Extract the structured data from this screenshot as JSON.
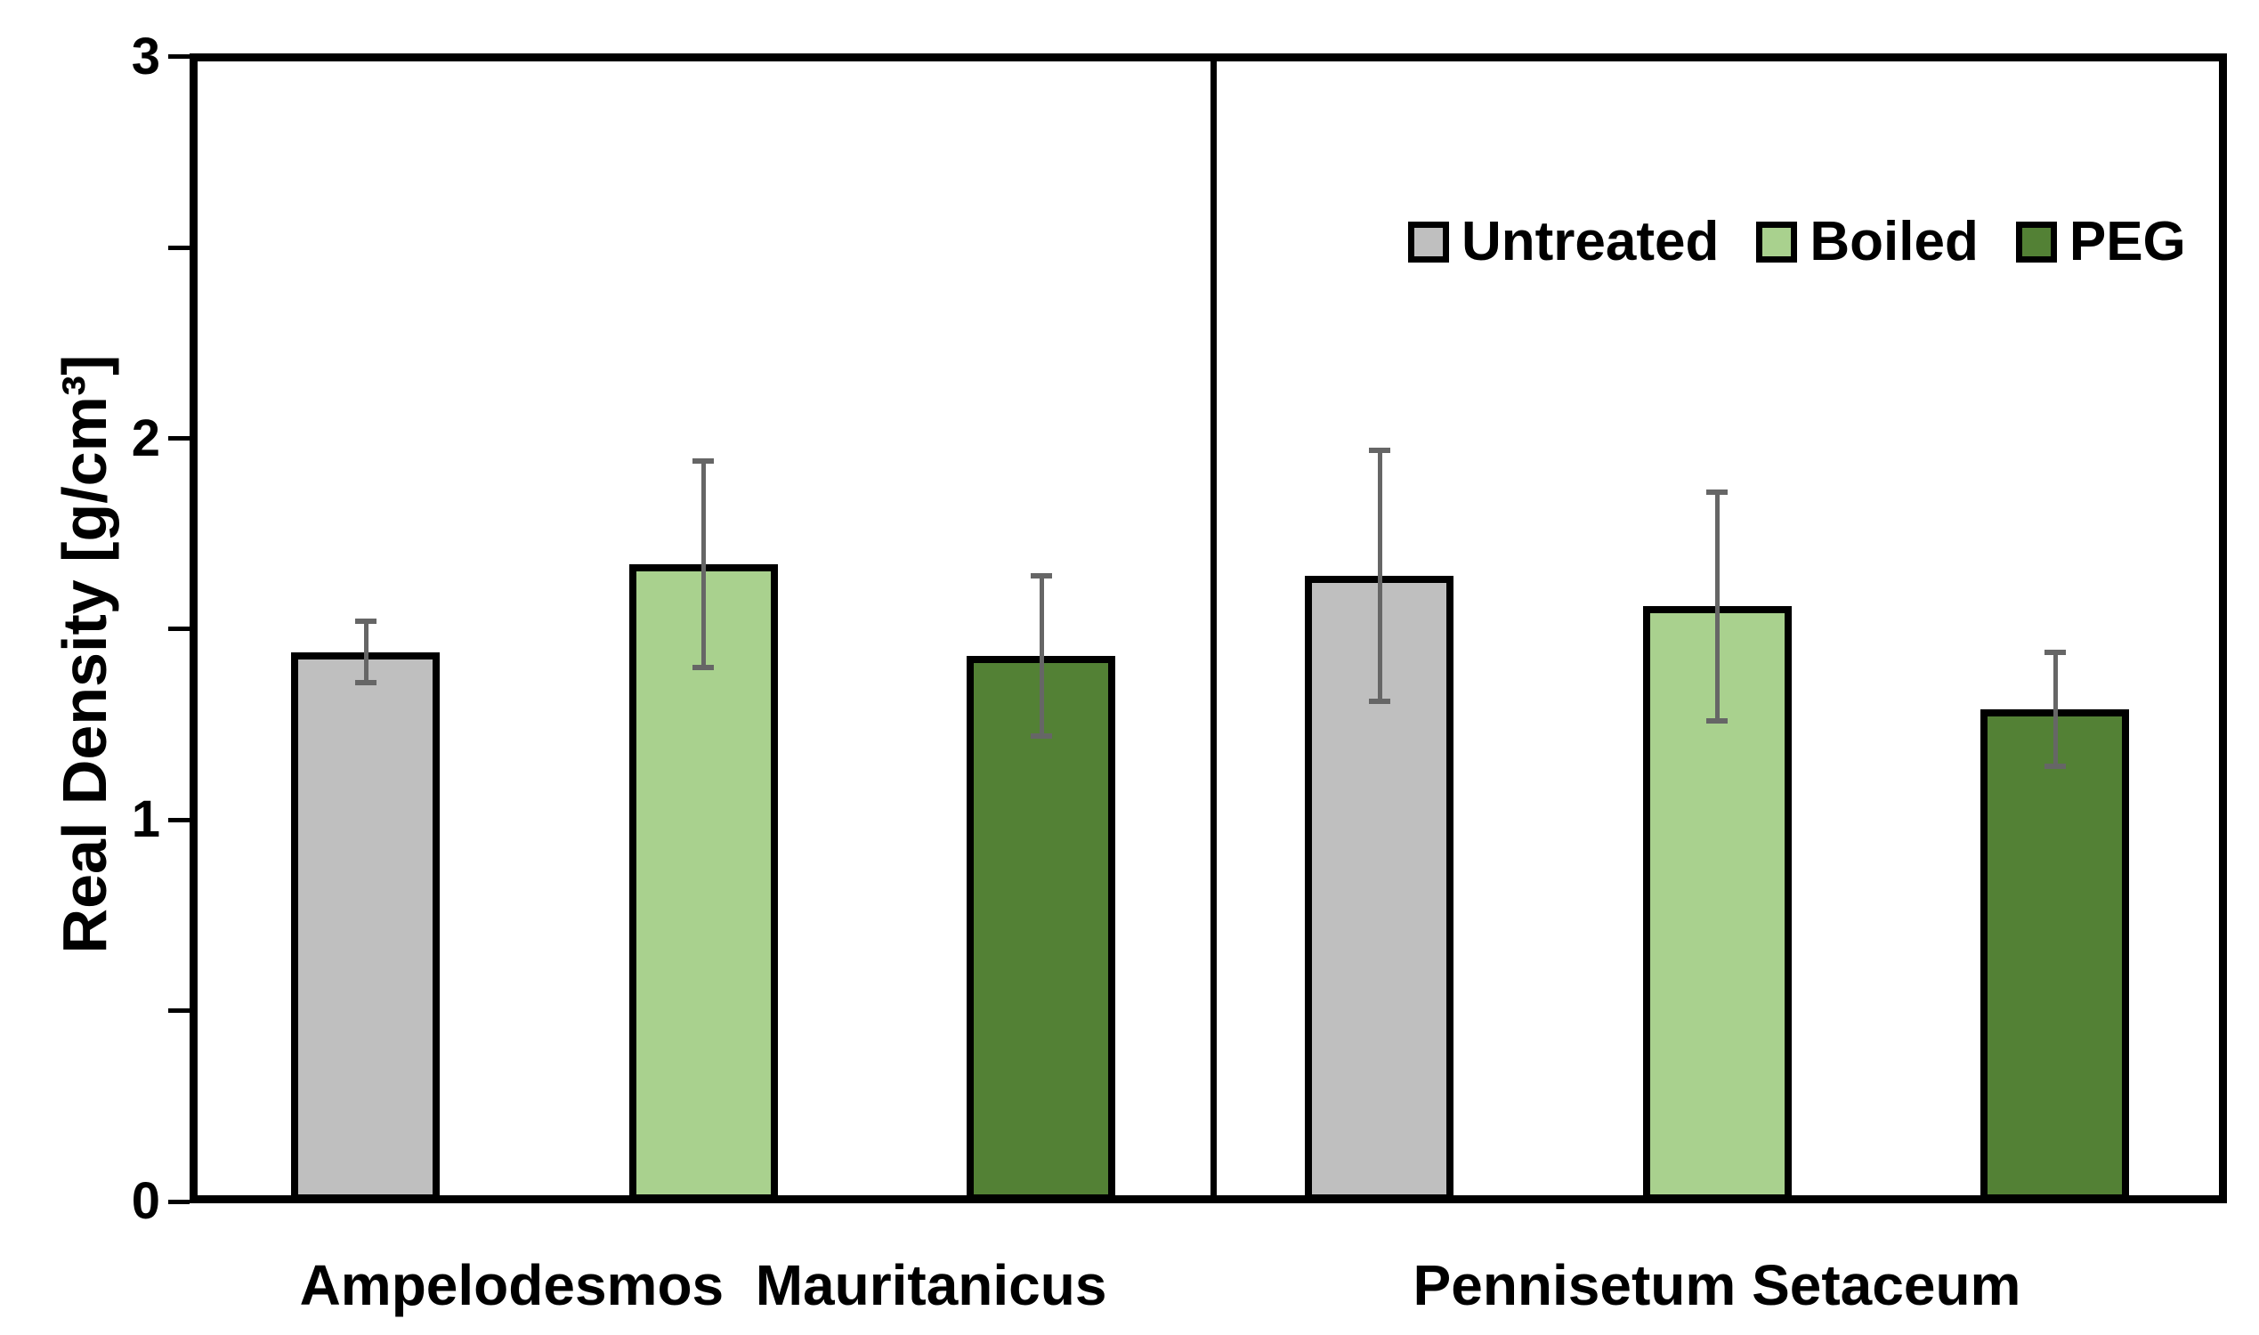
{
  "figure": {
    "background_color": "#FFFFFF",
    "text_color": "#000000"
  },
  "chart_data": {
    "type": "bar",
    "title": "",
    "xlabel": "",
    "ylabel": "Real Density [g/cm³]",
    "ylim": [
      0,
      3
    ],
    "y_major_tick_step": 1,
    "y_minor_tick_step": 0.5,
    "all_tick_values": [
      0,
      0.5,
      1,
      1.5,
      2,
      2.5,
      3
    ],
    "labeled_ticks": [
      {
        "value": 0,
        "label": "0"
      },
      {
        "value": 1,
        "label": "1"
      },
      {
        "value": 2,
        "label": "2"
      },
      {
        "value": 3,
        "label": "3"
      }
    ],
    "grid": false,
    "groups": [
      "Ampelodesmos  Mauritanicus",
      "Pennisetum Setaceum"
    ],
    "series": [
      {
        "name": "Untreated",
        "color": "#BFBFBF",
        "values": [
          1.44,
          1.64
        ],
        "errors": [
          0.08,
          0.33
        ]
      },
      {
        "name": "Boiled",
        "color": "#A9D18E",
        "values": [
          1.67,
          1.56
        ],
        "errors": [
          0.27,
          0.3
        ]
      },
      {
        "name": "PEG",
        "color": "#538135",
        "values": [
          1.43,
          1.29
        ],
        "errors": [
          0.21,
          0.15
        ]
      }
    ],
    "legend": {
      "position": "top-right-inside-plot",
      "labels": [
        "Untreated",
        "Boiled",
        "PEG"
      ]
    },
    "bar_border_color": "#000000",
    "error_bar_color": "#666666",
    "frame_color": "#000000"
  }
}
